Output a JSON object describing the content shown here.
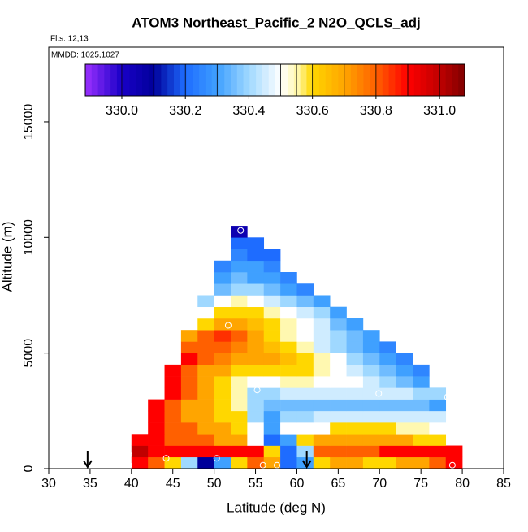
{
  "chart_data": {
    "type": "curtain",
    "title": "ATOM3 Northeast_Pacific_2 N2O_QCLS_adj",
    "flights": "Flts: 12,13",
    "dates": "MMDD: 1025,1027",
    "x_label": "Latitude (deg N)",
    "y_label": "Altitude (m)",
    "xlim": [
      30,
      85
    ],
    "xticks": [
      30,
      35,
      40,
      45,
      50,
      55,
      60,
      65,
      70,
      75,
      80,
      85
    ],
    "ylim": [
      0,
      18230
    ],
    "yticks": [
      0,
      5000,
      10000,
      15000
    ],
    "cell_width": 2,
    "cell_height": 500,
    "colorbar": {
      "lim": [
        329.885,
        331.079
      ],
      "ticks": [
        {
          "value": 330.0,
          "label": "330.0"
        },
        {
          "value": 330.2,
          "label": "330.2"
        },
        {
          "value": 330.4,
          "label": "330.4"
        },
        {
          "value": 330.6,
          "label": "330.6"
        },
        {
          "value": 330.8,
          "label": "330.8"
        },
        {
          "value": 331.0,
          "label": "331.0"
        }
      ],
      "stops": [
        [
          329.885,
          "#9b30ff"
        ],
        [
          330.0,
          "#1a00c8"
        ],
        [
          330.1,
          "#00009a"
        ],
        [
          330.2,
          "#1e6cff"
        ],
        [
          330.3,
          "#3fa0ff"
        ],
        [
          330.4,
          "#9fd8ff"
        ],
        [
          330.5,
          "#ffffff"
        ],
        [
          330.55,
          "#fff8b0"
        ],
        [
          330.6,
          "#ffd700"
        ],
        [
          330.7,
          "#ffa500"
        ],
        [
          330.8,
          "#ff6000"
        ],
        [
          330.9,
          "#ff0000"
        ],
        [
          331.0,
          "#c00000"
        ],
        [
          331.079,
          "#800000"
        ]
      ]
    },
    "rows": [
      {
        "altitude": 0,
        "lat_start": 40,
        "values": [
          330.9,
          330.8,
          330.6,
          330.4,
          330.1,
          330.3,
          330.6,
          330.8,
          330.7,
          330.2,
          330.3,
          330.6,
          330.7,
          330.7,
          330.6,
          330.6,
          330.7,
          330.7,
          330.8,
          330.9
        ]
      },
      {
        "altitude": 500,
        "lat_start": 40,
        "values": [
          331.0,
          330.9,
          330.9,
          330.9,
          330.9,
          330.9,
          330.9,
          330.9,
          330.6,
          330.2,
          330.4,
          330.8,
          330.8,
          330.8,
          330.8,
          330.9,
          330.9,
          330.9,
          330.9,
          330.9
        ]
      },
      {
        "altitude": 1000,
        "lat_start": 40,
        "values": [
          330.9,
          330.9,
          330.8,
          330.8,
          330.8,
          330.7,
          330.7,
          330.5,
          330.2,
          330.3,
          330.6,
          330.7,
          330.7,
          330.7,
          330.7,
          330.7,
          330.7,
          330.6,
          330.6
        ]
      },
      {
        "altitude": 1500,
        "lat_start": 42,
        "values": [
          330.9,
          330.8,
          330.8,
          330.7,
          330.7,
          330.6,
          330.5,
          330.3,
          330.5,
          330.5,
          330.5,
          330.6,
          330.6,
          330.6,
          330.6,
          330.55,
          330.55,
          330.5
        ]
      },
      {
        "altitude": 2000,
        "lat_start": 42,
        "values": [
          330.9,
          330.8,
          330.7,
          330.7,
          330.6,
          330.6,
          330.4,
          330.3,
          330.4,
          330.4,
          330.45,
          330.45,
          330.45,
          330.45,
          330.45,
          330.45,
          330.45,
          330.45
        ]
      },
      {
        "altitude": 2500,
        "lat_start": 42,
        "values": [
          330.9,
          330.8,
          330.7,
          330.7,
          330.6,
          330.55,
          330.4,
          330.35,
          330.35,
          330.35,
          330.35,
          330.35,
          330.35,
          330.35,
          330.35,
          330.35,
          330.35,
          330.3
        ]
      },
      {
        "altitude": 3000,
        "lat_start": 44,
        "values": [
          330.9,
          330.8,
          330.7,
          330.6,
          330.55,
          330.4,
          330.4,
          330.45,
          330.45,
          330.45,
          330.45,
          330.45,
          330.45,
          330.45,
          330.45,
          330.4,
          330.4
        ]
      },
      {
        "altitude": 3500,
        "lat_start": 44,
        "values": [
          330.9,
          330.8,
          330.7,
          330.6,
          330.55,
          330.5,
          330.5,
          330.55,
          330.55,
          330.5,
          330.5,
          330.5,
          330.45,
          330.4,
          330.35,
          330.3
        ]
      },
      {
        "altitude": 4000,
        "lat_start": 44,
        "values": [
          330.9,
          330.8,
          330.7,
          330.7,
          330.6,
          330.6,
          330.6,
          330.6,
          330.6,
          330.55,
          330.5,
          330.45,
          330.4,
          330.35,
          330.3,
          330.25
        ]
      },
      {
        "altitude": 4500,
        "lat_start": 46,
        "values": [
          330.9,
          330.8,
          330.75,
          330.7,
          330.7,
          330.7,
          330.65,
          330.6,
          330.55,
          330.5,
          330.4,
          330.35,
          330.3,
          330.25
        ]
      },
      {
        "altitude": 5000,
        "lat_start": 46,
        "values": [
          330.8,
          330.8,
          330.8,
          330.75,
          330.7,
          330.65,
          330.6,
          330.55,
          330.45,
          330.4,
          330.35,
          330.3,
          330.25
        ]
      },
      {
        "altitude": 5500,
        "lat_start": 46,
        "values": [
          330.7,
          330.8,
          330.85,
          330.8,
          330.7,
          330.6,
          330.55,
          330.5,
          330.45,
          330.4,
          330.35,
          330.3
        ]
      },
      {
        "altitude": 6000,
        "lat_start": 48,
        "values": [
          330.6,
          330.7,
          330.7,
          330.65,
          330.6,
          330.55,
          330.5,
          330.45,
          330.35,
          330.3
        ]
      },
      {
        "altitude": 6500,
        "lat_start": 48,
        "values": [
          330.5,
          330.6,
          330.6,
          330.6,
          330.55,
          330.5,
          330.45,
          330.4,
          330.3
        ]
      },
      {
        "altitude": 7000,
        "lat_start": 48,
        "values": [
          330.4,
          330.5,
          330.55,
          330.5,
          330.45,
          330.4,
          330.35,
          330.3
        ]
      },
      {
        "altitude": 7500,
        "lat_start": 50,
        "values": [
          330.35,
          330.4,
          330.4,
          330.35,
          330.3,
          330.25
        ]
      },
      {
        "altitude": 8000,
        "lat_start": 50,
        "values": [
          330.3,
          330.35,
          330.3,
          330.3,
          330.25
        ]
      },
      {
        "altitude": 8500,
        "lat_start": 50,
        "values": [
          330.25,
          330.3,
          330.3,
          330.25
        ]
      },
      {
        "altitude": 9000,
        "lat_start": 52,
        "values": [
          330.25,
          330.2,
          330.2
        ]
      },
      {
        "altitude": 9500,
        "lat_start": 52,
        "values": [
          330.2,
          330.2
        ]
      },
      {
        "altitude": 10000,
        "lat_start": 52,
        "values": [
          330.05
        ]
      }
    ],
    "points": {
      "x": [
        39.7,
        39.7,
        44.2,
        50.3,
        51.7,
        53.2,
        55.2,
        55.9,
        57.6,
        69.9,
        78.2,
        78.8
      ],
      "y": [
        600,
        150,
        450,
        450,
        6200,
        10300,
        3400,
        150,
        150,
        3250,
        3100,
        150
      ]
    },
    "arrows": [
      34.7,
      61.2
    ]
  }
}
